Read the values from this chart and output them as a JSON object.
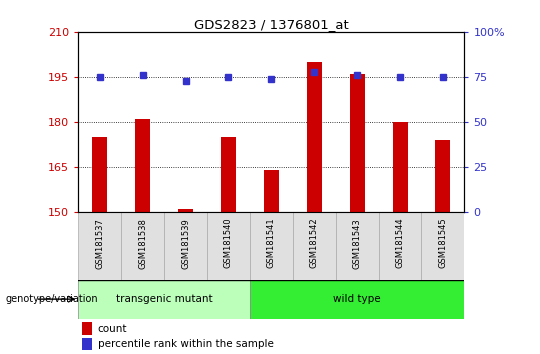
{
  "title": "GDS2823 / 1376801_at",
  "samples": [
    "GSM181537",
    "GSM181538",
    "GSM181539",
    "GSM181540",
    "GSM181541",
    "GSM181542",
    "GSM181543",
    "GSM181544",
    "GSM181545"
  ],
  "bar_values": [
    175.0,
    181.0,
    151.0,
    175.0,
    164.0,
    200.0,
    196.0,
    180.0,
    174.0
  ],
  "percentile_values": [
    75,
    76,
    73,
    75,
    74,
    78,
    76,
    75,
    75
  ],
  "ylim_left": [
    150,
    210
  ],
  "ylim_right": [
    0,
    100
  ],
  "yticks_left": [
    150,
    165,
    180,
    195,
    210
  ],
  "yticks_right": [
    0,
    25,
    50,
    75,
    100
  ],
  "ytick_right_labels": [
    "0",
    "25",
    "50",
    "75",
    "100%"
  ],
  "bar_color": "#cc0000",
  "dot_color": "#3333cc",
  "group1_label": "transgenic mutant",
  "group2_label": "wild type",
  "group1_color": "#bbffbb",
  "group2_color": "#33ee33",
  "group1_count": 4,
  "group2_count": 5,
  "bg_color": "#ffffff",
  "label_count": "count",
  "label_percentile": "percentile rank within the sample",
  "genotype_label": "genotype/variation",
  "tick_color_left": "#cc0000",
  "tick_color_right": "#3333cc",
  "grid_dotted_ticks": [
    165,
    180,
    195
  ],
  "bar_width": 0.35
}
